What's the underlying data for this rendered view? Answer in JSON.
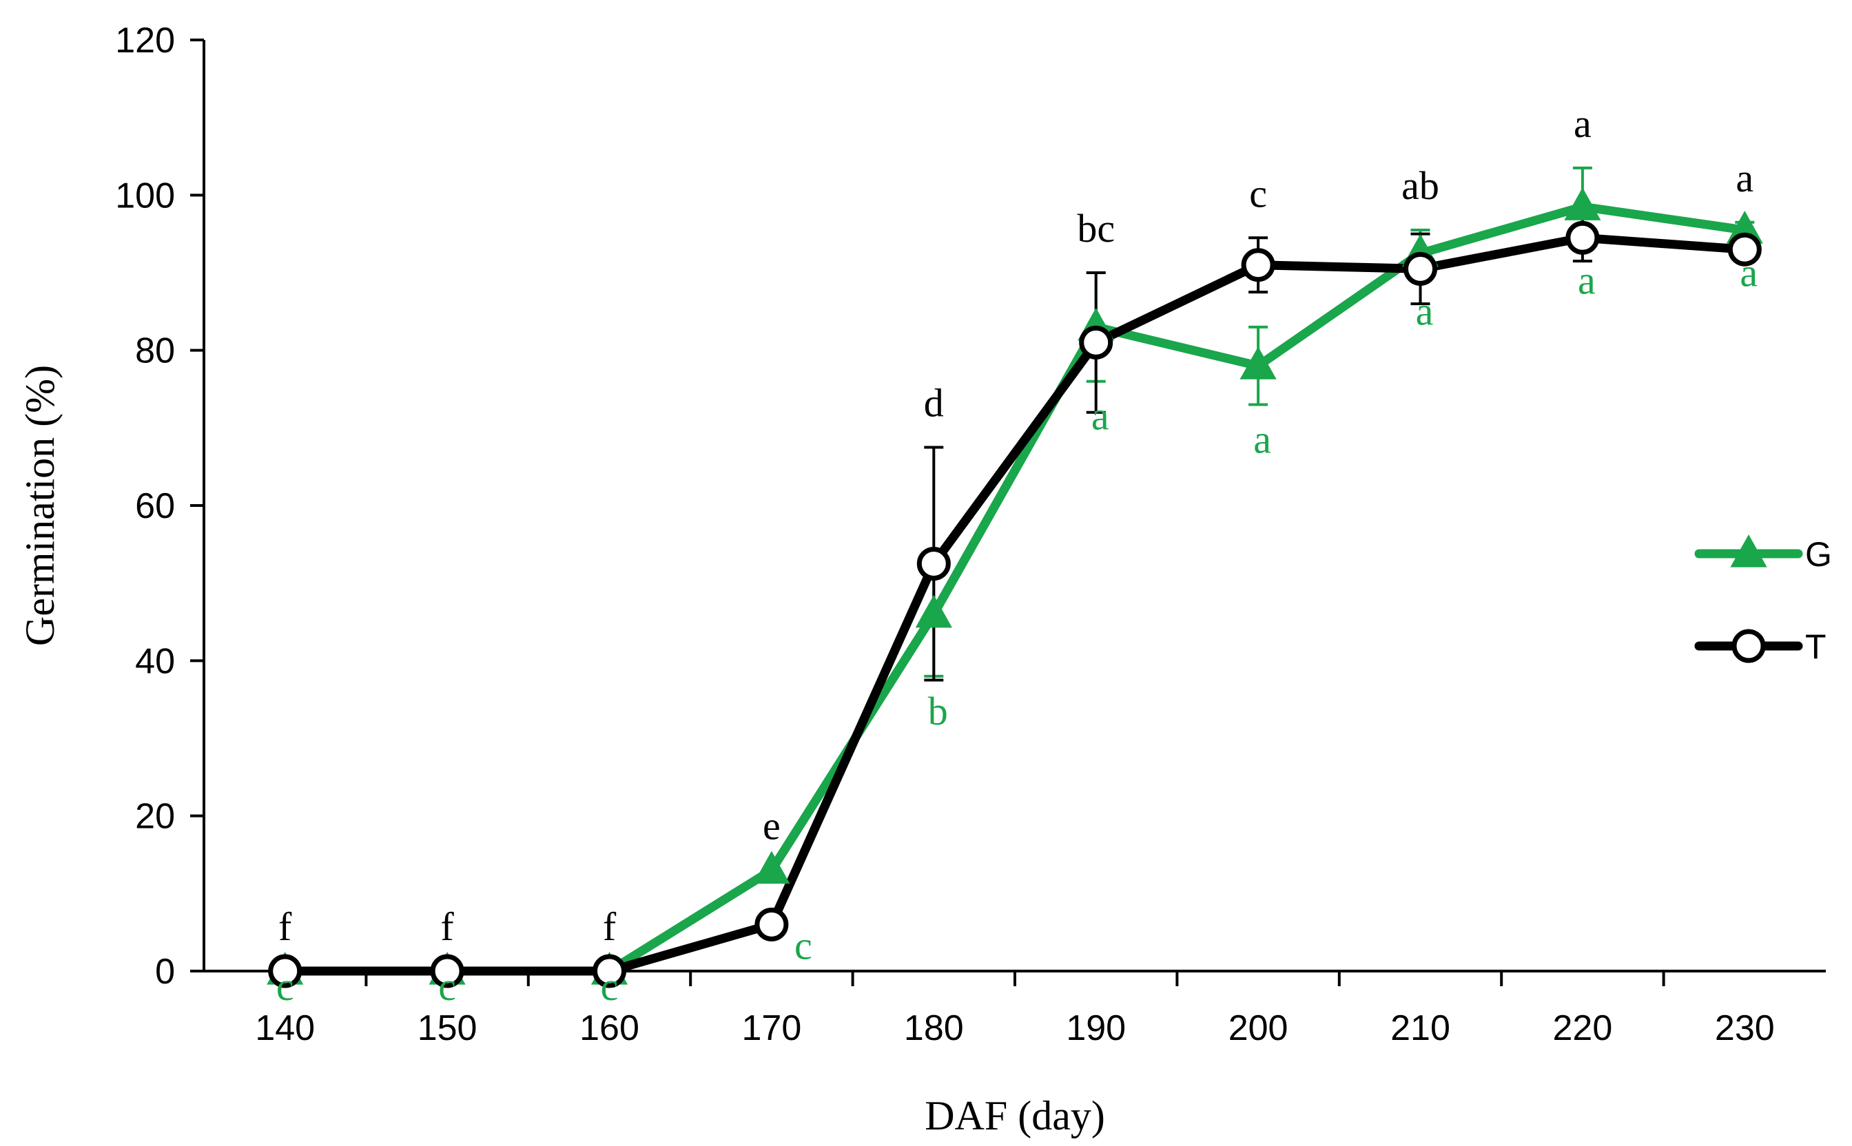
{
  "chart_data": {
    "type": "line",
    "title": "",
    "xlabel": "DAF (day)",
    "ylabel": "Germination (%)",
    "x": [
      140,
      150,
      160,
      170,
      180,
      190,
      200,
      210,
      220,
      230
    ],
    "xlim": [
      135,
      235
    ],
    "ylim": [
      0,
      120
    ],
    "x_ticks": [
      140,
      150,
      160,
      170,
      180,
      190,
      200,
      210,
      220,
      230
    ],
    "y_ticks": [
      0,
      20,
      40,
      60,
      80,
      100,
      120
    ],
    "grid": false,
    "legend_position": "right",
    "series": [
      {
        "name": "G",
        "color": "#1aa64b",
        "marker": "triangle",
        "values": [
          0,
          0,
          0,
          13,
          46,
          83,
          78,
          92.5,
          98.5,
          95.5
        ],
        "errors": [
          0,
          0,
          0,
          0,
          8,
          7,
          5,
          3,
          5,
          1
        ],
        "letters": [
          "c",
          "c",
          "c",
          "c",
          "b",
          "a",
          "a",
          "a",
          "a",
          "a"
        ]
      },
      {
        "name": "T",
        "color": "#000000",
        "marker": "circle",
        "values": [
          0,
          0,
          0,
          6,
          52.5,
          81,
          91,
          90.5,
          94.5,
          93
        ],
        "errors": [
          0,
          0,
          0,
          0,
          15,
          9,
          3.5,
          4.5,
          3,
          1
        ],
        "letters": [
          "f",
          "f",
          "f",
          "e",
          "d",
          "bc",
          "c",
          "ab",
          "a",
          "a"
        ]
      }
    ]
  }
}
